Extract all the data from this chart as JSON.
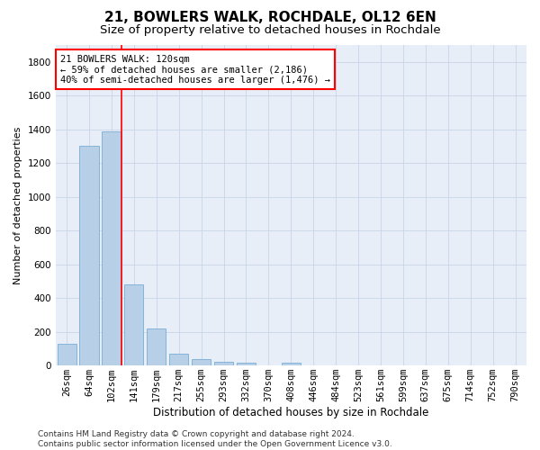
{
  "title1": "21, BOWLERS WALK, ROCHDALE, OL12 6EN",
  "title2": "Size of property relative to detached houses in Rochdale",
  "xlabel": "Distribution of detached houses by size in Rochdale",
  "ylabel": "Number of detached properties",
  "categories": [
    "26sqm",
    "64sqm",
    "102sqm",
    "141sqm",
    "179sqm",
    "217sqm",
    "255sqm",
    "293sqm",
    "332sqm",
    "370sqm",
    "408sqm",
    "446sqm",
    "484sqm",
    "523sqm",
    "561sqm",
    "599sqm",
    "637sqm",
    "675sqm",
    "714sqm",
    "752sqm",
    "790sqm"
  ],
  "values": [
    130,
    1300,
    1390,
    480,
    220,
    70,
    38,
    22,
    15,
    0,
    15,
    0,
    0,
    0,
    0,
    0,
    0,
    0,
    0,
    0,
    0
  ],
  "bar_color": "#b8cfe8",
  "bar_edge_color": "#7aaed6",
  "vline_color": "red",
  "vline_x_index": 2,
  "annotation_line1": "21 BOWLERS WALK: 120sqm",
  "annotation_line2": "← 59% of detached houses are smaller (2,186)",
  "annotation_line3": "40% of semi-detached houses are larger (1,476) →",
  "annotation_box_color": "white",
  "annotation_box_edge_color": "red",
  "ylim": [
    0,
    1900
  ],
  "yticks": [
    0,
    200,
    400,
    600,
    800,
    1000,
    1200,
    1400,
    1600,
    1800
  ],
  "grid_color": "#c8d4e8",
  "background_color": "#e8eef8",
  "footer_text": "Contains HM Land Registry data © Crown copyright and database right 2024.\nContains public sector information licensed under the Open Government Licence v3.0.",
  "title1_fontsize": 11,
  "title2_fontsize": 9.5,
  "xlabel_fontsize": 8.5,
  "ylabel_fontsize": 8,
  "tick_fontsize": 7.5,
  "annot_fontsize": 7.5,
  "footer_fontsize": 6.5
}
